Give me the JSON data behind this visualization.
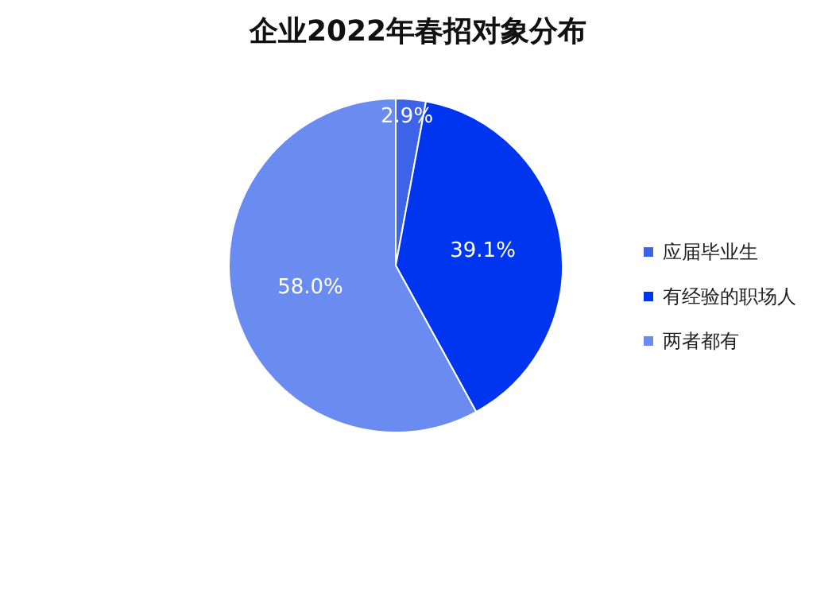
{
  "chart_data": {
    "type": "pie",
    "title": "企业2022年春招对象分布",
    "categories": [
      "应届毕业生",
      "有经验的职场人",
      "两者都有"
    ],
    "values": [
      2.9,
      39.1,
      58.0
    ],
    "colors": [
      "#3d63e6",
      "#0035f0",
      "#6a8bf0"
    ],
    "value_labels": [
      "2.9%",
      "39.1%",
      "58.0%"
    ],
    "legend": "right"
  }
}
